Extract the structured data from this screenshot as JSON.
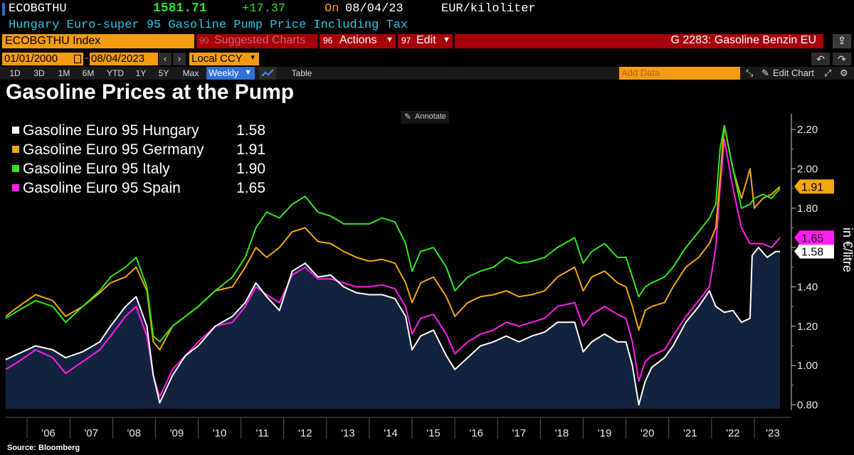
{
  "header": {
    "ticker": "ECOBGTHU",
    "price": "1581.71",
    "change": "+17.37",
    "on_label": "On",
    "date": "08/04/23",
    "unit": "EUR/kiloliter",
    "description": "Hungary Euro-super 95 Gasoline Pump Price Including Tax"
  },
  "menu": {
    "index_field": "ECOBGTHU Index",
    "suggested_num": "90",
    "suggested": "Suggested Charts",
    "actions_num": "96",
    "actions": "Actions",
    "edit_num": "97",
    "edit": "Edit",
    "function_title": "G 2283: Gasoline Benzin EU"
  },
  "controls": {
    "start_date": "01/01/2000",
    "end_date": "08/04/2023",
    "currency": "Local CCY",
    "add_data_placeholder": "Add Data",
    "edit_chart": "Edit Chart",
    "periods": [
      "1D",
      "3D",
      "1M",
      "6M",
      "YTD",
      "1Y",
      "5Y",
      "Max"
    ],
    "frequency": "Weekly",
    "table": "Table",
    "annotate": "Annotate"
  },
  "colors": {
    "hungary": "#ffffff",
    "germany": "#f0a80c",
    "italy": "#2ee81e",
    "spain": "#ff1ef0",
    "area": "#13233d",
    "header_bar": "#a80009",
    "orange": "#f39c12"
  },
  "chart_data": {
    "type": "line",
    "title": "Gasoline Prices at the Pump",
    "ylabel": "in €/litre",
    "ylim": [
      0.78,
      2.28
    ],
    "yticks": [
      "0.80",
      "1.00",
      "1.20",
      "1.40",
      "1.60",
      "1.80",
      "2.00",
      "2.20"
    ],
    "xlim": [
      2005.5,
      2023.7
    ],
    "xticks": [
      "'06",
      "'07",
      "'08",
      "'09",
      "'10",
      "'11",
      "'12",
      "'13",
      "'14",
      "'15",
      "'16",
      "'17",
      "'18",
      "'19",
      "'20",
      "'21",
      "'22",
      "'23"
    ],
    "source": "Source: Bloomberg",
    "series": [
      {
        "name": "Gasoline Euro 95 Hungary",
        "last": "1.58",
        "color": "#ffffff",
        "area": true,
        "x": [
          2005.5,
          2005.8,
          2006.2,
          2006.6,
          2006.9,
          2007.3,
          2007.7,
          2007.95,
          2008.3,
          2008.55,
          2008.8,
          2008.95,
          2009.1,
          2009.4,
          2009.7,
          2010.0,
          2010.4,
          2010.8,
          2011.1,
          2011.35,
          2011.6,
          2011.9,
          2012.2,
          2012.5,
          2012.8,
          2013.1,
          2013.4,
          2013.7,
          2014.0,
          2014.3,
          2014.6,
          2014.85,
          2015.0,
          2015.2,
          2015.5,
          2015.8,
          2016.0,
          2016.3,
          2016.6,
          2016.9,
          2017.2,
          2017.5,
          2017.8,
          2018.1,
          2018.4,
          2018.8,
          2019.0,
          2019.2,
          2019.5,
          2019.8,
          2020.0,
          2020.15,
          2020.3,
          2020.45,
          2020.6,
          2020.9,
          2021.1,
          2021.4,
          2021.7,
          2021.95,
          2022.1,
          2022.3,
          2022.5,
          2022.7,
          2022.9,
          2022.95,
          2023.1,
          2023.3,
          2023.5,
          2023.6
        ],
        "y": [
          1.03,
          1.06,
          1.1,
          1.08,
          1.04,
          1.07,
          1.12,
          1.2,
          1.3,
          1.35,
          1.2,
          0.95,
          0.81,
          0.95,
          1.05,
          1.1,
          1.2,
          1.25,
          1.32,
          1.42,
          1.35,
          1.28,
          1.48,
          1.52,
          1.45,
          1.46,
          1.4,
          1.37,
          1.36,
          1.36,
          1.34,
          1.25,
          1.08,
          1.15,
          1.18,
          1.05,
          0.98,
          1.04,
          1.1,
          1.12,
          1.15,
          1.12,
          1.15,
          1.17,
          1.22,
          1.22,
          1.07,
          1.12,
          1.16,
          1.12,
          1.12,
          1.0,
          0.8,
          0.92,
          0.99,
          1.04,
          1.1,
          1.22,
          1.3,
          1.38,
          1.3,
          1.27,
          1.28,
          1.22,
          1.24,
          1.56,
          1.6,
          1.55,
          1.58,
          1.58
        ]
      },
      {
        "name": "Gasoline Euro 95 Germany",
        "last": "1.91",
        "color": "#f0a80c",
        "area": false,
        "x": [
          2005.5,
          2005.8,
          2006.2,
          2006.6,
          2006.9,
          2007.3,
          2007.7,
          2007.95,
          2008.3,
          2008.55,
          2008.8,
          2008.95,
          2009.1,
          2009.4,
          2009.7,
          2010.0,
          2010.4,
          2010.8,
          2011.1,
          2011.35,
          2011.6,
          2011.9,
          2012.2,
          2012.5,
          2012.8,
          2013.1,
          2013.4,
          2013.7,
          2014.0,
          2014.3,
          2014.6,
          2014.85,
          2015.0,
          2015.2,
          2015.5,
          2015.8,
          2016.0,
          2016.3,
          2016.6,
          2016.9,
          2017.2,
          2017.5,
          2017.8,
          2018.1,
          2018.4,
          2018.8,
          2019.0,
          2019.2,
          2019.5,
          2019.8,
          2020.0,
          2020.15,
          2020.3,
          2020.45,
          2020.6,
          2020.9,
          2021.1,
          2021.4,
          2021.7,
          2021.95,
          2022.1,
          2022.2,
          2022.3,
          2022.5,
          2022.7,
          2022.9,
          2023.0,
          2023.2,
          2023.4,
          2023.6
        ],
        "y": [
          1.25,
          1.3,
          1.36,
          1.33,
          1.25,
          1.3,
          1.37,
          1.42,
          1.45,
          1.5,
          1.38,
          1.12,
          1.08,
          1.2,
          1.25,
          1.3,
          1.38,
          1.4,
          1.5,
          1.6,
          1.55,
          1.6,
          1.68,
          1.7,
          1.63,
          1.62,
          1.58,
          1.55,
          1.53,
          1.54,
          1.52,
          1.42,
          1.32,
          1.42,
          1.45,
          1.35,
          1.25,
          1.32,
          1.35,
          1.36,
          1.38,
          1.35,
          1.36,
          1.38,
          1.45,
          1.5,
          1.38,
          1.45,
          1.48,
          1.42,
          1.4,
          1.3,
          1.18,
          1.28,
          1.3,
          1.32,
          1.4,
          1.5,
          1.55,
          1.62,
          1.7,
          1.95,
          2.22,
          2.0,
          1.85,
          2.0,
          1.8,
          1.85,
          1.87,
          1.91
        ]
      },
      {
        "name": "Gasoline Euro 95 Italy",
        "last": "1.90",
        "color": "#2ee81e",
        "area": false,
        "x": [
          2005.5,
          2005.8,
          2006.2,
          2006.6,
          2006.9,
          2007.3,
          2007.7,
          2007.95,
          2008.3,
          2008.55,
          2008.8,
          2008.95,
          2009.1,
          2009.4,
          2009.7,
          2010.0,
          2010.4,
          2010.8,
          2011.1,
          2011.35,
          2011.6,
          2011.9,
          2012.2,
          2012.5,
          2012.8,
          2013.1,
          2013.4,
          2013.7,
          2014.0,
          2014.3,
          2014.6,
          2014.85,
          2015.0,
          2015.2,
          2015.5,
          2015.8,
          2016.0,
          2016.3,
          2016.6,
          2016.9,
          2017.2,
          2017.5,
          2017.8,
          2018.1,
          2018.4,
          2018.8,
          2019.0,
          2019.2,
          2019.5,
          2019.8,
          2020.0,
          2020.15,
          2020.3,
          2020.45,
          2020.6,
          2020.9,
          2021.1,
          2021.4,
          2021.7,
          2021.95,
          2022.1,
          2022.2,
          2022.3,
          2022.5,
          2022.7,
          2022.9,
          2023.0,
          2023.2,
          2023.4,
          2023.6
        ],
        "y": [
          1.24,
          1.28,
          1.33,
          1.3,
          1.22,
          1.3,
          1.38,
          1.45,
          1.5,
          1.55,
          1.4,
          1.15,
          1.12,
          1.2,
          1.25,
          1.3,
          1.38,
          1.45,
          1.55,
          1.7,
          1.78,
          1.75,
          1.82,
          1.86,
          1.78,
          1.76,
          1.72,
          1.72,
          1.72,
          1.75,
          1.73,
          1.62,
          1.48,
          1.58,
          1.6,
          1.5,
          1.38,
          1.45,
          1.48,
          1.5,
          1.55,
          1.52,
          1.53,
          1.55,
          1.6,
          1.65,
          1.52,
          1.58,
          1.62,
          1.55,
          1.55,
          1.45,
          1.35,
          1.4,
          1.42,
          1.45,
          1.5,
          1.6,
          1.68,
          1.75,
          1.82,
          2.1,
          2.22,
          2.0,
          1.8,
          1.82,
          1.85,
          1.87,
          1.85,
          1.9
        ]
      },
      {
        "name": "Gasoline Euro 95 Spain",
        "last": "1.65",
        "color": "#ff1ef0",
        "area": false,
        "x": [
          2005.5,
          2005.8,
          2006.2,
          2006.6,
          2006.9,
          2007.3,
          2007.7,
          2007.95,
          2008.3,
          2008.55,
          2008.8,
          2008.95,
          2009.1,
          2009.4,
          2009.7,
          2010.0,
          2010.4,
          2010.8,
          2011.1,
          2011.35,
          2011.6,
          2011.9,
          2012.2,
          2012.5,
          2012.8,
          2013.1,
          2013.4,
          2013.7,
          2014.0,
          2014.3,
          2014.6,
          2014.85,
          2015.0,
          2015.2,
          2015.5,
          2015.8,
          2016.0,
          2016.3,
          2016.6,
          2016.9,
          2017.2,
          2017.5,
          2017.8,
          2018.1,
          2018.4,
          2018.8,
          2019.0,
          2019.2,
          2019.5,
          2019.8,
          2020.0,
          2020.15,
          2020.3,
          2020.45,
          2020.6,
          2020.9,
          2021.1,
          2021.4,
          2021.7,
          2021.95,
          2022.1,
          2022.2,
          2022.3,
          2022.5,
          2022.7,
          2022.9,
          2023.0,
          2023.2,
          2023.4,
          2023.6
        ],
        "y": [
          0.98,
          1.02,
          1.08,
          1.04,
          0.96,
          1.02,
          1.08,
          1.15,
          1.25,
          1.3,
          1.15,
          0.95,
          0.84,
          0.98,
          1.05,
          1.12,
          1.2,
          1.22,
          1.3,
          1.4,
          1.36,
          1.32,
          1.46,
          1.5,
          1.44,
          1.44,
          1.42,
          1.4,
          1.4,
          1.41,
          1.39,
          1.3,
          1.16,
          1.24,
          1.26,
          1.16,
          1.06,
          1.12,
          1.16,
          1.18,
          1.22,
          1.2,
          1.22,
          1.24,
          1.3,
          1.32,
          1.2,
          1.26,
          1.3,
          1.26,
          1.24,
          1.12,
          0.92,
          1.02,
          1.05,
          1.08,
          1.15,
          1.25,
          1.33,
          1.4,
          1.6,
          1.9,
          2.15,
          1.9,
          1.7,
          1.62,
          1.62,
          1.62,
          1.6,
          1.65
        ]
      }
    ]
  }
}
